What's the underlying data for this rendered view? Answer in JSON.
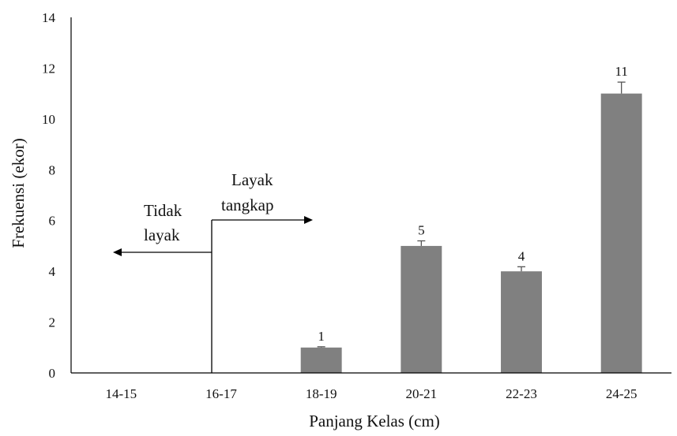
{
  "chart_data": {
    "type": "bar",
    "categories": [
      "14-15",
      "16-17",
      "18-19",
      "20-21",
      "22-23",
      "24-25"
    ],
    "values": [
      0,
      0,
      1,
      5,
      4,
      11
    ],
    "error_plus": [
      0,
      0,
      0.03,
      0.2,
      0.18,
      0.45
    ],
    "data_labels": [
      "",
      "",
      "1",
      "5",
      "4",
      "11"
    ],
    "title": "",
    "xlabel": "Panjang Kelas (cm)",
    "ylabel": "Frekuensi (ekor)",
    "ylim": [
      0,
      14
    ],
    "yticks": [
      "0",
      "2",
      "4",
      "6",
      "8",
      "10",
      "12",
      "14"
    ],
    "grid": false,
    "bar_color": "#808080",
    "annotations": {
      "left_line1": "Tidak",
      "left_line2": "layak",
      "right_line1": "Layak",
      "right_line2": "tangkap"
    }
  }
}
